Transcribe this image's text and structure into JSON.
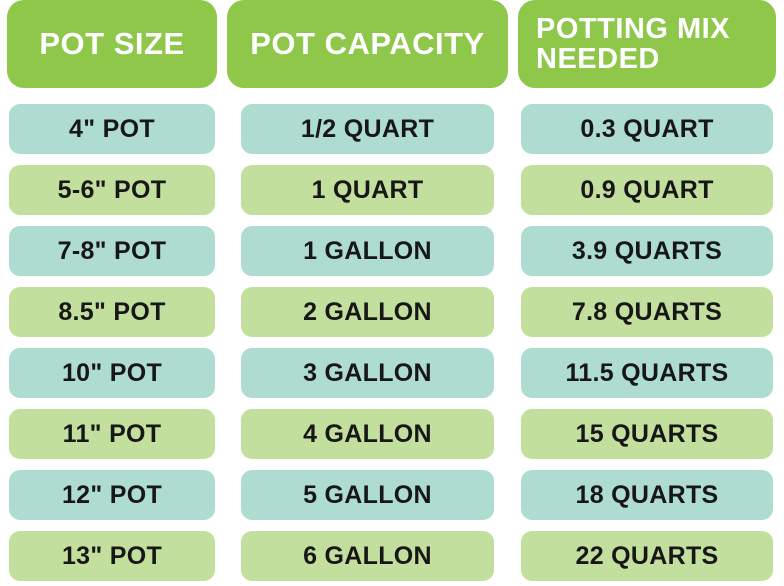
{
  "chart_data": {
    "type": "table",
    "title": "",
    "columns": [
      "POT SIZE",
      "POT CAPACITY",
      "POTTING MIX NEEDED"
    ],
    "rows": [
      [
        "4\" POT",
        "1/2 QUART",
        "0.3 QUART"
      ],
      [
        "5-6\" POT",
        "1 QUART",
        "0.9 QUART"
      ],
      [
        "7-8\" POT",
        "1 GALLON",
        "3.9 QUARTS"
      ],
      [
        "8.5\" POT",
        "2 GALLON",
        "7.8 QUARTS"
      ],
      [
        "10\" POT",
        "3 GALLON",
        "11.5 QUARTS"
      ],
      [
        "11\" POT",
        "4 GALLON",
        "15 QUARTS"
      ],
      [
        "12\" POT",
        "5 GALLON",
        "18 QUARTS"
      ],
      [
        "13\" POT",
        "6 GALLON",
        "22 QUARTS"
      ]
    ],
    "layout": {
      "header_fill": "#8fc74b",
      "header_text_color": "#ffffff",
      "row_fill_odd": "#c3df9e",
      "row_fill_even": "#afdcd0",
      "row_text_color": "#171717",
      "background": "#ffffff"
    }
  }
}
